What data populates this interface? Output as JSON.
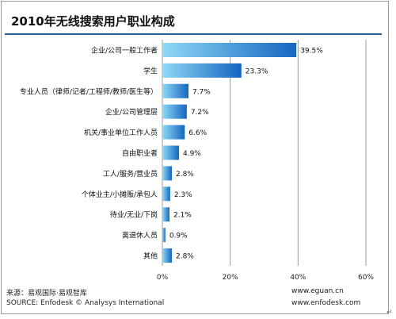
{
  "title": "2010年无线搜索用户职业构成",
  "footer": {
    "source_cn": "来源：易观国际·易观智库",
    "source_en": "SOURCE: Enfodesk © Analysys International",
    "url_1": "www.eguan.cn",
    "url_2": "www.enfodesk.com"
  },
  "corner_mark": "↵",
  "chart_data": {
    "type": "bar",
    "orientation": "horizontal",
    "title": "2010年无线搜索用户职业构成",
    "categories": [
      "企业/公司一般工作者",
      "学生",
      "专业人员（律师/记者/工程师/教师/医生等）",
      "企业/公司管理层",
      "机关/事业单位工作人员",
      "自由职业者",
      "工人/服务/营业员",
      "个体业主/小摊贩/承包人",
      "待业/无业/下岗",
      "离退休人员",
      "其他"
    ],
    "values": [
      39.5,
      23.3,
      7.7,
      7.2,
      6.6,
      4.9,
      2.8,
      2.3,
      2.1,
      0.9,
      2.8
    ],
    "data_labels": [
      "39.5%",
      "23.3%",
      "7.7%",
      "7.2%",
      "6.6%",
      "4.9%",
      "2.8%",
      "2.3%",
      "2.1%",
      "0.9%",
      "2.8%"
    ],
    "x_ticks": [
      0,
      20,
      40,
      60
    ],
    "x_tick_labels": [
      "0%",
      "20%",
      "40%",
      "60%"
    ],
    "xlim": [
      0,
      60
    ],
    "grid": true,
    "colors": {
      "bar_light": "#8fd8f6",
      "bar_dark": "#1566c0",
      "grid": "#9a9a9a",
      "title_rule": "#1f5f9e"
    }
  }
}
